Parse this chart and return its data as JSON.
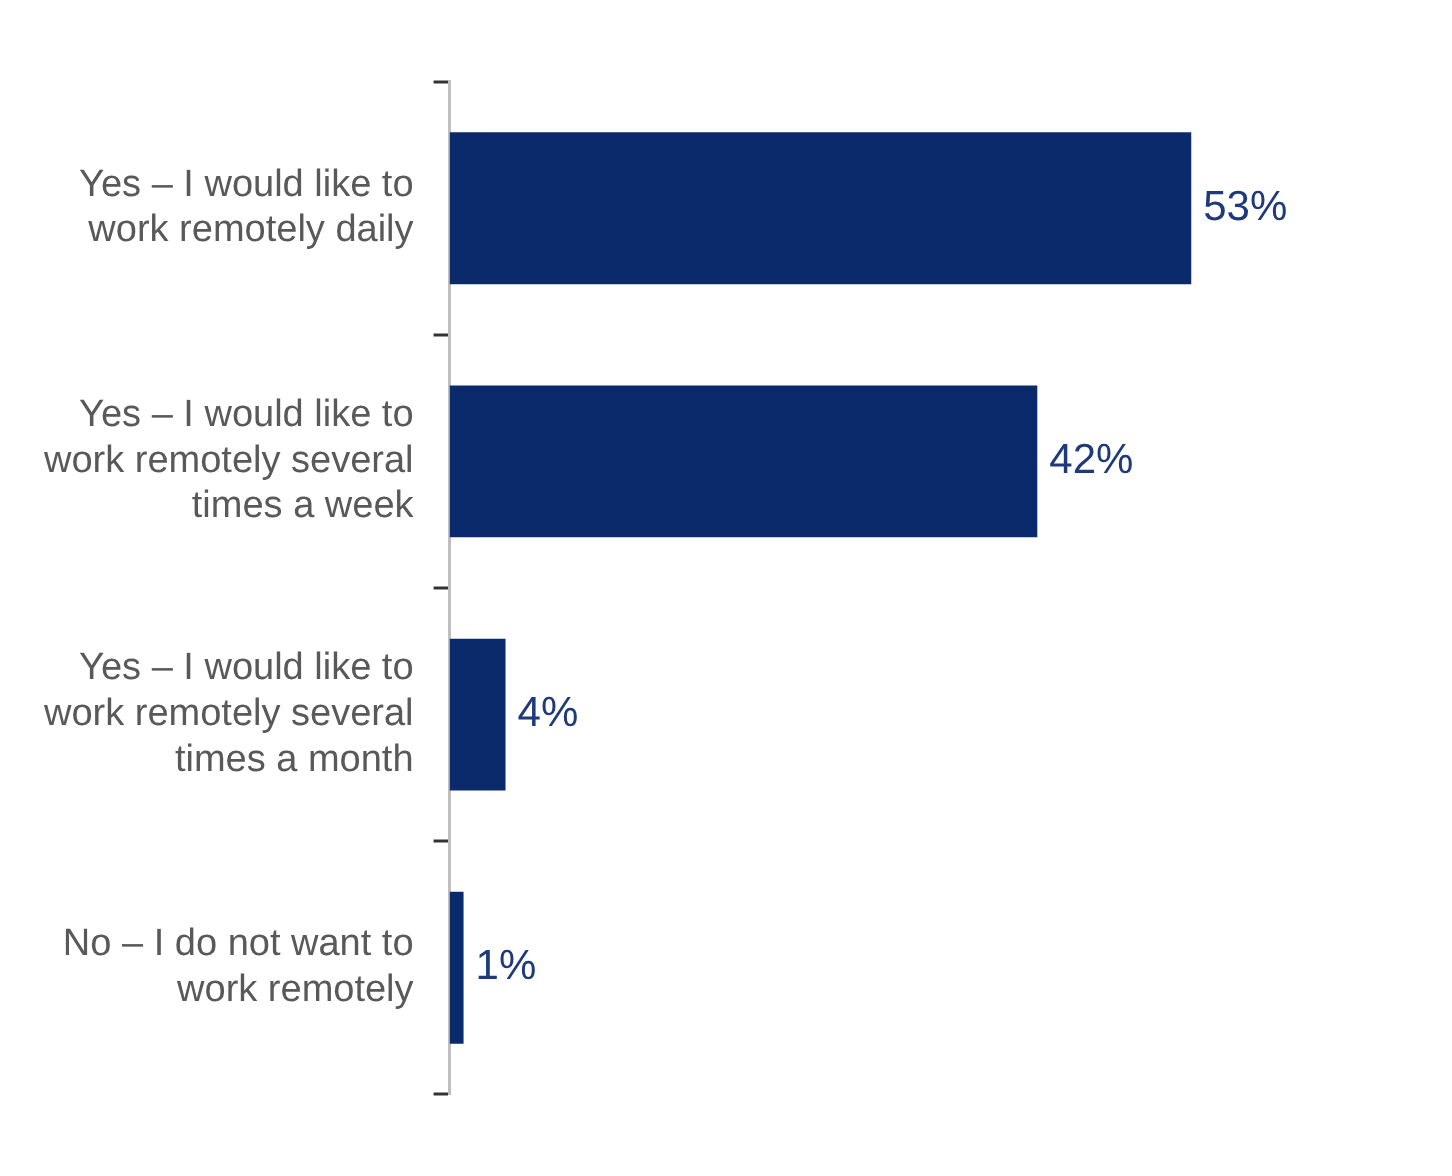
{
  "chart_data": {
    "type": "bar",
    "orientation": "horizontal",
    "categories": [
      "Yes – I would like to work remotely daily",
      "Yes – I would like to work remotely several times a week",
      "Yes – I would like to work remotely several times a month",
      "No – I do not want to work remotely"
    ],
    "values": [
      53,
      42,
      4,
      1
    ],
    "value_labels": [
      "53%",
      "42%",
      "4%",
      "1%"
    ],
    "color": "#0b2a6b"
  }
}
